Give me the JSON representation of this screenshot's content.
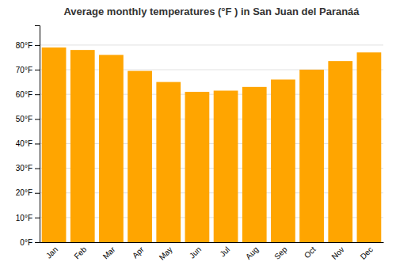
{
  "chart_data": {
    "type": "bar",
    "title": "Average monthly temperatures (°F ) in San Juan del Paranáá",
    "categories": [
      "Jan",
      "Feb",
      "Mar",
      "Apr",
      "May",
      "Jun",
      "Jul",
      "Aug",
      "Sep",
      "Oct",
      "Nov",
      "Dec"
    ],
    "values": [
      79,
      78,
      76,
      69.5,
      65,
      61,
      61.5,
      63,
      66,
      70,
      73.5,
      77
    ],
    "color": "#FFA500",
    "ylim": [
      0,
      88
    ],
    "yticks": [
      {
        "value": 0,
        "label": "0°F"
      },
      {
        "value": 10,
        "label": "10°F"
      },
      {
        "value": 20,
        "label": "20°F"
      },
      {
        "value": 30,
        "label": "30°F"
      },
      {
        "value": 40,
        "label": "40°F"
      },
      {
        "value": 50,
        "label": "50°F"
      },
      {
        "value": 60,
        "label": "60°F"
      },
      {
        "value": 70,
        "label": "70°F"
      },
      {
        "value": 80,
        "label": "80°F"
      }
    ],
    "grid": true
  }
}
